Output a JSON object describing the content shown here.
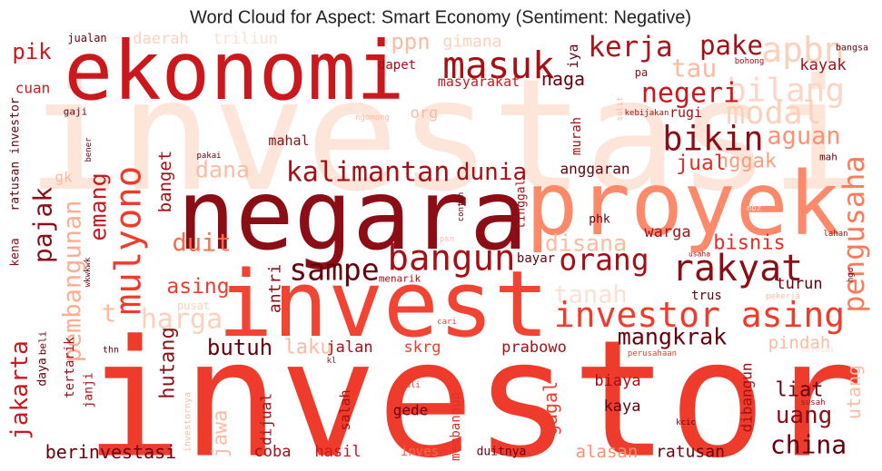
{
  "chart_data": {
    "type": "wordcloud",
    "title": "Word Cloud for Aspect: Smart Economy (Sentiment: Negative)",
    "words": [
      {
        "text": "investasi",
        "color": "#fee5d9"
      },
      {
        "text": "investor",
        "color": "#ef3b2c"
      },
      {
        "text": "negara",
        "color": "#8b0d15"
      },
      {
        "text": "proyek",
        "color": "#fc8a6a"
      },
      {
        "text": "invest",
        "color": "#f14432"
      },
      {
        "text": "ekonomi",
        "color": "#cb181d"
      },
      {
        "text": "masuk",
        "color": "#a50f15"
      },
      {
        "text": "kerja",
        "color": "#b11218"
      },
      {
        "text": "pake",
        "color": "#a50f15"
      },
      {
        "text": "apbn",
        "color": "#fdd0bc"
      },
      {
        "text": "bilang",
        "color": "#fdd5c4"
      },
      {
        "text": "tau",
        "color": "#fcbba1"
      },
      {
        "text": "negeri",
        "color": "#cb181d"
      },
      {
        "text": "modal",
        "color": "#fdd0bc"
      },
      {
        "text": "bikin",
        "color": "#8b0d15"
      },
      {
        "text": "aguan",
        "color": "#fc9272"
      },
      {
        "text": "nggak",
        "color": "#fc9c7e"
      },
      {
        "text": "jual",
        "color": "#e32f27"
      },
      {
        "text": "pengusaha",
        "color": "#fb7b5b"
      },
      {
        "text": "kalimantan",
        "color": "#a50f15"
      },
      {
        "text": "dunia",
        "color": "#a50f15"
      },
      {
        "text": "dana",
        "color": "#fcbba1"
      },
      {
        "text": "banget",
        "color": "#a50f15"
      },
      {
        "text": "pajak",
        "color": "#8b0d15"
      },
      {
        "text": "mulyono",
        "color": "#ef3b2c"
      },
      {
        "text": "emang",
        "color": "#cb181d"
      },
      {
        "text": "pembangunan",
        "color": "#fcae91"
      },
      {
        "text": "duit",
        "color": "#fb6a4a"
      },
      {
        "text": "disana",
        "color": "#fcbba1"
      },
      {
        "text": "orang",
        "color": "#a50f15"
      },
      {
        "text": "bangun",
        "color": "#a50f15"
      },
      {
        "text": "sampe",
        "color": "#67000d"
      },
      {
        "text": "rakyat",
        "color": "#8b0d15"
      },
      {
        "text": "bisnis",
        "color": "#e32f27"
      },
      {
        "text": "warga",
        "color": "#a50f15"
      },
      {
        "text": "antri",
        "color": "#8b0d15"
      },
      {
        "text": "asing",
        "color": "#ef3b2c"
      },
      {
        "text": "tanah",
        "color": "#fee0d2"
      },
      {
        "text": "investor asing",
        "color": "#ef3b2c"
      },
      {
        "text": "harga",
        "color": "#fdd0bc"
      },
      {
        "text": "t",
        "color": "#fcbba1"
      },
      {
        "text": "mangkrak",
        "color": "#67000d"
      },
      {
        "text": "pindah",
        "color": "#fcbba1"
      },
      {
        "text": "hutang",
        "color": "#8b0d15"
      },
      {
        "text": "butuh",
        "color": "#67000d"
      },
      {
        "text": "laku",
        "color": "#fcbba1"
      },
      {
        "text": "jalan",
        "color": "#a50f15"
      },
      {
        "text": "skrg",
        "color": "#ef3b2c"
      },
      {
        "text": "prabowo",
        "color": "#a50f15"
      },
      {
        "text": "jakarta",
        "color": "#cb181d"
      },
      {
        "text": "daya",
        "color": "#67000d"
      },
      {
        "text": "beli",
        "color": "#67000d"
      },
      {
        "text": "tertarik",
        "color": "#a50f15"
      },
      {
        "text": "janji",
        "color": "#a50f15"
      },
      {
        "text": "jawa",
        "color": "#fcbba1"
      },
      {
        "text": "dijual",
        "color": "#a50f15"
      },
      {
        "text": "salah",
        "color": "#a50f15"
      },
      {
        "text": "membangun",
        "color": "#e32f27"
      },
      {
        "text": "gagal",
        "color": "#ef3b2c"
      },
      {
        "text": "gede",
        "color": "#67000d"
      },
      {
        "text": "biaya",
        "color": "#a50f15"
      },
      {
        "text": "kaya",
        "color": "#67000d"
      },
      {
        "text": "dibangun",
        "color": "#a50f15"
      },
      {
        "text": "liat",
        "color": "#67000d"
      },
      {
        "text": "uang",
        "color": "#8b0d15"
      },
      {
        "text": "china",
        "color": "#67000d"
      },
      {
        "text": "utang",
        "color": "#fcbba1"
      },
      {
        "text": "berinvestasi",
        "color": "#67000d"
      },
      {
        "text": "coba",
        "color": "#a50f15"
      },
      {
        "text": "hasil",
        "color": "#cb181d"
      },
      {
        "text": "inves",
        "color": "#fb6a4a"
      },
      {
        "text": "duitnya",
        "color": "#67000d"
      },
      {
        "text": "alasan",
        "color": "#fc9272"
      },
      {
        "text": "ratusan",
        "color": "#67000d"
      },
      {
        "text": "kayak",
        "color": "#a50f15"
      },
      {
        "text": "naga",
        "color": "#67000d"
      },
      {
        "text": "iya",
        "color": "#67000d"
      },
      {
        "text": "ppn",
        "color": "#fcbba1"
      },
      {
        "text": "gimana",
        "color": "#fdd0bc"
      },
      {
        "text": "dapet",
        "color": "#a50f15"
      },
      {
        "text": "masyarakat",
        "color": "#cb181d"
      },
      {
        "text": "org",
        "color": "#fcbba1"
      },
      {
        "text": "pik",
        "color": "#cb181d"
      },
      {
        "text": "jualan",
        "color": "#67000d"
      },
      {
        "text": "daerah",
        "color": "#fdd0bc"
      },
      {
        "text": "triliun",
        "color": "#fee0d2"
      },
      {
        "text": "cuan",
        "color": "#cb181d"
      },
      {
        "text": "gaji",
        "color": "#67000d"
      },
      {
        "text": "ratusan investor",
        "color": "#67000d"
      },
      {
        "text": "gk",
        "color": "#fcbba1"
      },
      {
        "text": "kena",
        "color": "#8b0d15"
      },
      {
        "text": "mahal",
        "color": "#8b0d15"
      },
      {
        "text": "anggaran",
        "color": "#67000d"
      },
      {
        "text": "bayar",
        "color": "#67000d"
      },
      {
        "text": "murah",
        "color": "#a50f15"
      },
      {
        "text": "pa",
        "color": "#8b0d15"
      },
      {
        "text": "rugi",
        "color": "#a50f15"
      },
      {
        "text": "tinggal",
        "color": "#a50f15"
      },
      {
        "text": "phk",
        "color": "#67000d"
      },
      {
        "text": "trus",
        "color": "#67000d"
      },
      {
        "text": "turun",
        "color": "#67000d"
      },
      {
        "text": "bangsa",
        "color": "#67000d"
      },
      {
        "text": "kebijakan",
        "color": "#a50f15"
      },
      {
        "text": "ngomong",
        "color": "#fcbba1"
      },
      {
        "text": "bohong",
        "color": "#a50f15"
      },
      {
        "text": "sulit",
        "color": "#fcbba1"
      },
      {
        "text": "menarik",
        "color": "#a50f15"
      },
      {
        "text": "usaha",
        "color": "#a50f15"
      },
      {
        "text": "pakai",
        "color": "#67000d"
      },
      {
        "text": "bener",
        "color": "#67000d"
      },
      {
        "text": "lahan",
        "color": "#a50f15"
      },
      {
        "text": "mah",
        "color": "#67000d"
      },
      {
        "text": "pekerja",
        "color": "#fcbba1"
      },
      {
        "text": "cari",
        "color": "#ef3b2c"
      },
      {
        "text": "perusahaan",
        "color": "#ef3b2c"
      },
      {
        "text": "kali",
        "color": "#ef3b2c"
      },
      {
        "text": "susah",
        "color": "#a50f15"
      },
      {
        "text": "kcic",
        "color": "#67000d"
      },
      {
        "text": "investornya",
        "color": "#fcbba1"
      },
      {
        "text": "thn",
        "color": "#67000d"
      },
      {
        "text": "contoh",
        "color": "#67000d"
      },
      {
        "text": "psn",
        "color": "#fcbba1"
      },
      {
        "text": "hgu",
        "color": "#67000d"
      },
      {
        "text": "wkwkwk",
        "color": "#67000d"
      },
      {
        "text": "pusat",
        "color": "#fdd0bc"
      },
      {
        "text": "kl",
        "color": "#a50f15"
      },
      {
        "text": "selesai",
        "color": "#fee0d2"
      },
      {
        "text": "mbz",
        "color": "#fee0d2"
      }
    ]
  }
}
